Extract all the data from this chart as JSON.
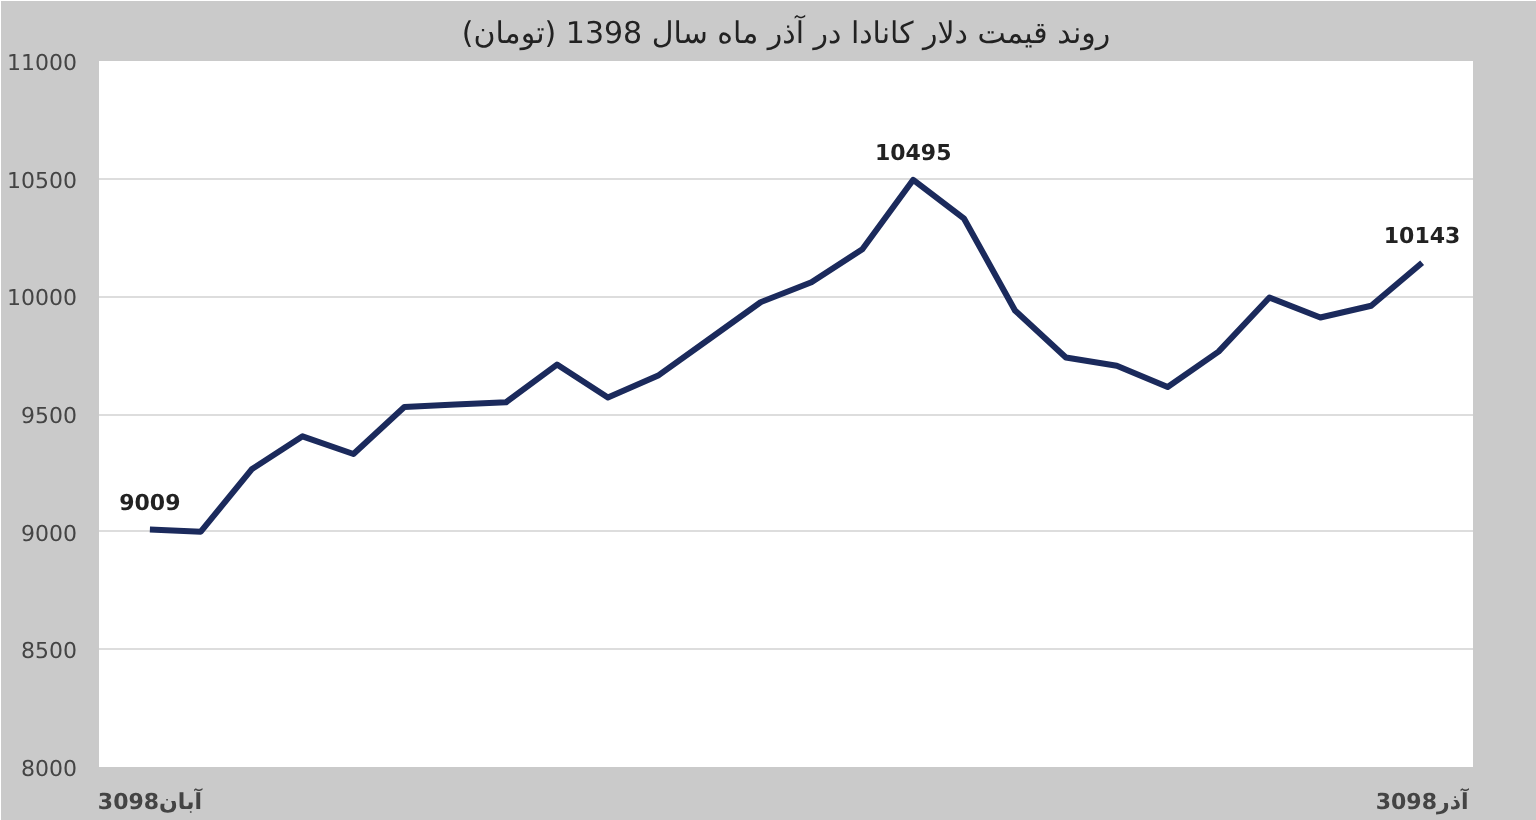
{
  "chart_data": {
    "type": "line",
    "title": "روند قیمت دلار کانادا در آذر ماه سال 1398 (تومان)",
    "categories": [
      "30آبان98",
      null,
      null,
      null,
      null,
      null,
      null,
      null,
      null,
      null,
      null,
      null,
      null,
      null,
      null,
      null,
      null,
      null,
      null,
      null,
      null,
      null,
      null,
      null,
      null,
      "30آذر98"
    ],
    "series": [
      {
        "color": "#1b2a5c",
        "values": [
          9009,
          9000,
          9265,
          9405,
          9330,
          9530,
          9540,
          9550,
          9710,
          9570,
          9665,
          9820,
          9975,
          10060,
          10200,
          10495,
          10330,
          9940,
          9740,
          9705,
          9615,
          9765,
          9995,
          9910,
          9960,
          10143
        ],
        "value_labels": [
          "9009",
          null,
          null,
          null,
          null,
          null,
          null,
          null,
          null,
          null,
          null,
          null,
          null,
          null,
          null,
          "10495",
          null,
          null,
          null,
          null,
          null,
          null,
          null,
          null,
          null,
          "10143"
        ]
      }
    ],
    "ylim": [
      8000,
      11000
    ],
    "yticks": [
      8000,
      8500,
      9000,
      9500,
      10000,
      10500,
      11000
    ],
    "grid": "y",
    "marker": "none",
    "line_style": "solid"
  }
}
